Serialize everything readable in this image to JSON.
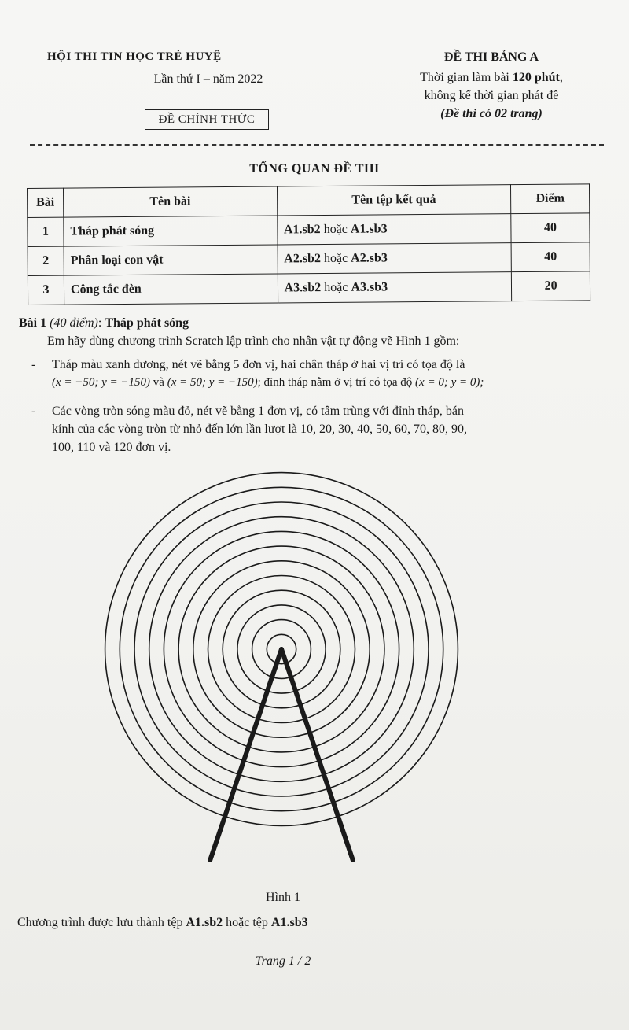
{
  "header": {
    "org": "HỘI THI TIN HỌC TRẺ HUYỆ",
    "round": "Lần thứ I – năm 2022",
    "official": "ĐỀ CHÍNH THỨC",
    "exam_title": "ĐỀ THI BẢNG A",
    "time_prefix": "Thời gian làm bài ",
    "time_value": "120 phút",
    "time_suffix": ",",
    "time_note": "không kể thời gian phát đề",
    "pages_note": "(Đề thi có 02 trang)"
  },
  "overview": {
    "title": "TỔNG QUAN ĐỀ THI",
    "columns": [
      "Bài",
      "Tên bài",
      "Tên tệp kết quả",
      "Điểm"
    ],
    "rows": [
      {
        "num": "1",
        "name": "Tháp phát sóng",
        "file_a": "A1.sb2",
        "or": " hoặc ",
        "file_b": "A1.sb3",
        "score": "40"
      },
      {
        "num": "2",
        "name": "Phân loại con vật",
        "file_a": "A2.sb2",
        "or": " hoặc ",
        "file_b": "A2.sb3",
        "score": "40"
      },
      {
        "num": "3",
        "name": "Công tắc đèn",
        "file_a": "A3.sb2",
        "or": " hoặc ",
        "file_b": "A3.sb3",
        "score": "20"
      }
    ]
  },
  "problem1": {
    "label": "Bài 1",
    "points": "(40 điểm)",
    "colon": ": ",
    "title": "Tháp phát sóng",
    "intro": "Em hãy dùng chương trình Scratch lập trình cho nhân vật tự động vẽ Hình 1 gồm:",
    "bullet1_line1": "Tháp màu xanh dương, nét vẽ bằng 5 đơn vị, hai chân tháp ở hai vị trí có tọa độ là",
    "bullet1_coord1": "(x = −50;  y = −150)",
    "bullet1_and": " và ",
    "bullet1_coord2": "(x = 50;  y = −150)",
    "bullet1_mid": "; đỉnh tháp nằm ở vị trí có tọa độ ",
    "bullet1_coord3": "(x = 0;  y = 0);",
    "bullet2_line1": "Các vòng tròn sóng màu đỏ, nét vẽ bằng 1 đơn vị, có tâm trùng với đỉnh tháp, bán",
    "bullet2_line2": "kính của các vòng tròn từ nhỏ đến lớn lần lượt là 10, 20, 30, 40, 50, 60, 70, 80, 90,",
    "bullet2_line3": "100, 110 và 120 đơn vị.",
    "bullet_dash": "-",
    "figure_radii": [
      10,
      20,
      30,
      40,
      50,
      60,
      70,
      80,
      90,
      100,
      110,
      120
    ],
    "tower_apex": [
      0,
      0
    ],
    "tower_legs": [
      [
        -50,
        -150
      ],
      [
        50,
        -150
      ]
    ],
    "caption": "Hình 1",
    "saved_prefix": "Chương trình được lưu thành tệp ",
    "saved_file_a": "A1.sb2",
    "saved_or": " hoặc tệp ",
    "saved_file_b": "A1.sb3"
  },
  "footer": {
    "page": "Trang 1 / 2"
  }
}
